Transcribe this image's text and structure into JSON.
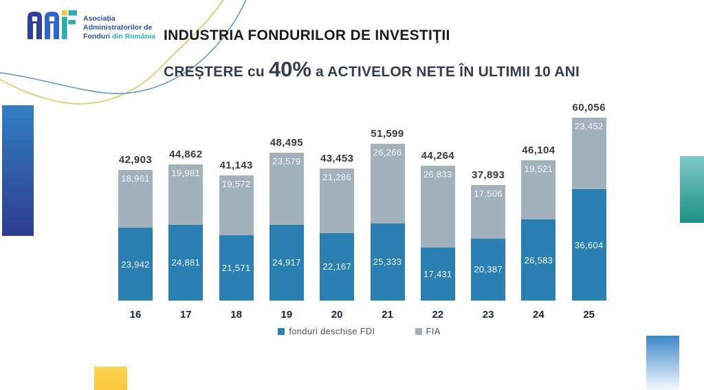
{
  "logo": {
    "letters": "AAF",
    "org_line1": "Asociația",
    "org_line2": "Administratorilor de",
    "org_line3_part1": "Fonduri ",
    "org_line3_part2": "din România"
  },
  "header": {
    "title_line1": "INDUSTRIA FONDURILOR DE INVESTIŢII",
    "subtitle_prefix": "CREȘTERE cu ",
    "subtitle_highlight": "40%",
    "subtitle_suffix": " a ACTIVELOR NETE ÎN ULTIMII 10 ANI"
  },
  "chart_data": {
    "type": "bar",
    "stacked": true,
    "title": "CREȘTERE cu 40% a ACTIVELOR NETE ÎN ULTIMII 10 ANI",
    "categories": [
      "16",
      "17",
      "18",
      "19",
      "20",
      "21",
      "22",
      "23",
      "24",
      "25"
    ],
    "series": [
      {
        "name": "fonduri deschise FDI",
        "color": "#2A80B2",
        "values": [
          23942,
          24881,
          21571,
          24917,
          22167,
          25333,
          17431,
          20387,
          26583,
          36604
        ]
      },
      {
        "name": "FIA",
        "color": "#A2B2BC",
        "values": [
          18961,
          19981,
          19572,
          23579,
          21286,
          26266,
          26833,
          17506,
          19521,
          23452
        ]
      }
    ],
    "totals": [
      42903,
      44862,
      41143,
      48495,
      43453,
      51599,
      44264,
      37893,
      46104,
      60056
    ],
    "xlabel": "",
    "ylabel": "",
    "ylim": [
      0,
      62000
    ],
    "grid": false,
    "axes_hidden": true,
    "value_labels": "inside segments, totals above bars, comma thousands separator",
    "legend_position": "bottom-center"
  },
  "colors": {
    "bar_blue": "#2A80B2",
    "bar_gray": "#A2B2BC",
    "title_primary": "#1A1A1A",
    "title_secondary": "#333F50",
    "logo_navy": "#2B3F9B",
    "logo_blue": "#2F66CC",
    "logo_teal": "#2CB0AE",
    "logo_yellow": "#F5C23C",
    "curve_yellow": "#D9C75A",
    "curve_blue": "#5B9BD5",
    "deco_left_gradient": "#337FC2 → #2C3C8E",
    "deco_right_gradient": "#7EC9C9 → #1E8F85",
    "deco_bottom_gradient": "#3B86C8 → #F2F8FD",
    "deco_yellow_block": "#FBCC42"
  }
}
